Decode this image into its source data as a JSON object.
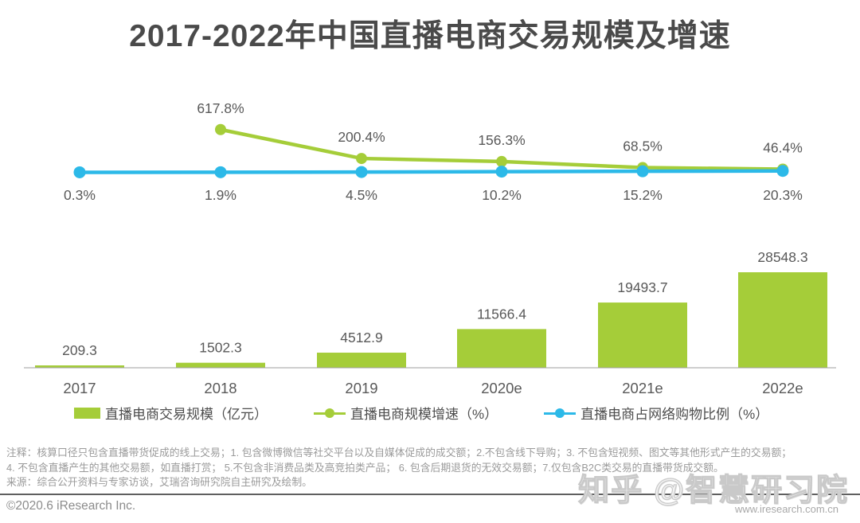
{
  "title": "2017-2022年中国直播电商交易规模及增速",
  "chart_data": {
    "type": "bar+line combo",
    "categories": [
      "2017",
      "2018",
      "2019",
      "2020e",
      "2021e",
      "2022e"
    ],
    "series": [
      {
        "name": "直播电商交易规模（亿元）",
        "type": "bar",
        "color": "#a5cd39",
        "values": [
          209.3,
          1502.3,
          4512.9,
          11566.4,
          19493.7,
          28548.3
        ],
        "labels": [
          "209.3",
          "1502.3",
          "4512.9",
          "11566.4",
          "19493.7",
          "28548.3"
        ]
      },
      {
        "name": "直播电商规模增速（%）",
        "type": "line",
        "color": "#a5cd39",
        "values": [
          null,
          617.8,
          200.4,
          156.3,
          68.5,
          46.4
        ],
        "labels": [
          "",
          "617.8%",
          "200.4%",
          "156.3%",
          "68.5%",
          "46.4%"
        ]
      },
      {
        "name": "直播电商占网络购物比例（%）",
        "type": "line",
        "color": "#2cb9e8",
        "values": [
          0.3,
          1.9,
          4.5,
          10.2,
          15.2,
          20.3
        ],
        "labels": [
          "0.3%",
          "1.9%",
          "4.5%",
          "10.2%",
          "15.2%",
          "20.3%"
        ]
      }
    ],
    "ylim": [
      0,
      28548.3
    ],
    "grid": false,
    "legend_position": "bottom",
    "label_color": "#595959",
    "axis_color": "#9e9e9e"
  },
  "notes": {
    "line1": "注释：核算口径只包含直播带货促成的线上交易；1. 包含微博微信等社交平台以及自媒体促成的成交额；2.不包含线下导购；3. 不包含短视频、图文等其他形式产生的交易额；",
    "line2": "4. 不包含直播产生的其他交易额，如直播打赏； 5.不包含非消费品类及高竞拍类产品； 6. 包含后期退货的无效交易额；7.仅包含B2C类交易的直播带货成交额。",
    "source": "来源：综合公开资料与专家访谈，艾瑞咨询研究院自主研究及绘制。"
  },
  "footer": {
    "copyright": "©2020.6 iResearch Inc.",
    "website": "www.iresearch.com.cn"
  },
  "watermark": "知乎 @智慧研习院"
}
